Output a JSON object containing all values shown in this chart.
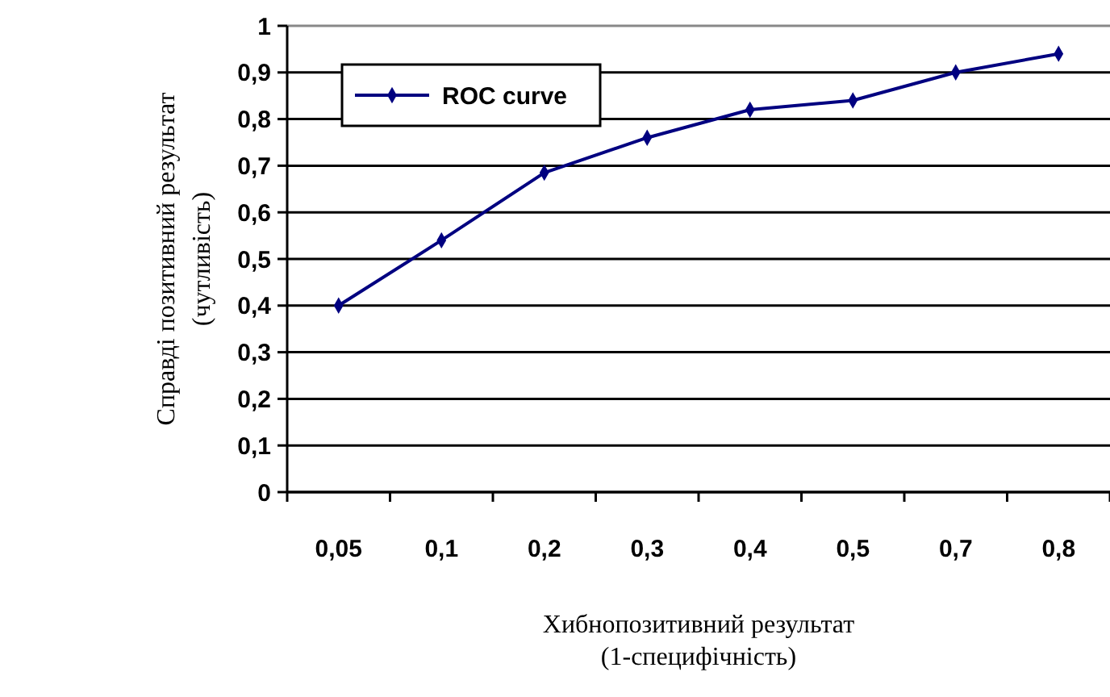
{
  "chart_data": {
    "type": "line",
    "xlabel": "Хибнопозитивний результат\n(1-специфічність)",
    "ylabel": "Справді позитивний результат\n(чутливість)",
    "categories": [
      "0,05",
      "0,1",
      "0,2",
      "0,3",
      "0,4",
      "0,5",
      "0,7",
      "0,8"
    ],
    "series": [
      {
        "name": "ROC curve",
        "color": "#000080",
        "values": [
          0.4,
          0.54,
          0.685,
          0.76,
          0.82,
          0.84,
          0.9,
          0.94
        ]
      }
    ],
    "ylim": [
      0,
      1
    ],
    "yticks": [
      0,
      {
        "value": 0.1,
        "label": "0,1"
      },
      {
        "value": 0.2,
        "label": "0,2"
      },
      {
        "value": 0.3,
        "label": "0,3"
      },
      {
        "value": 0.4,
        "label": "0,4"
      },
      {
        "value": 0.5,
        "label": "0,5"
      },
      {
        "value": 0.6,
        "label": "0,6"
      },
      {
        "value": 0.7,
        "label": "0,7"
      },
      {
        "value": 0.8,
        "label": "0,8"
      },
      {
        "value": 0.9,
        "label": "0,9"
      },
      1
    ],
    "grid": "y",
    "legend": "top left",
    "marker": "diamond",
    "line_style": "solid"
  }
}
